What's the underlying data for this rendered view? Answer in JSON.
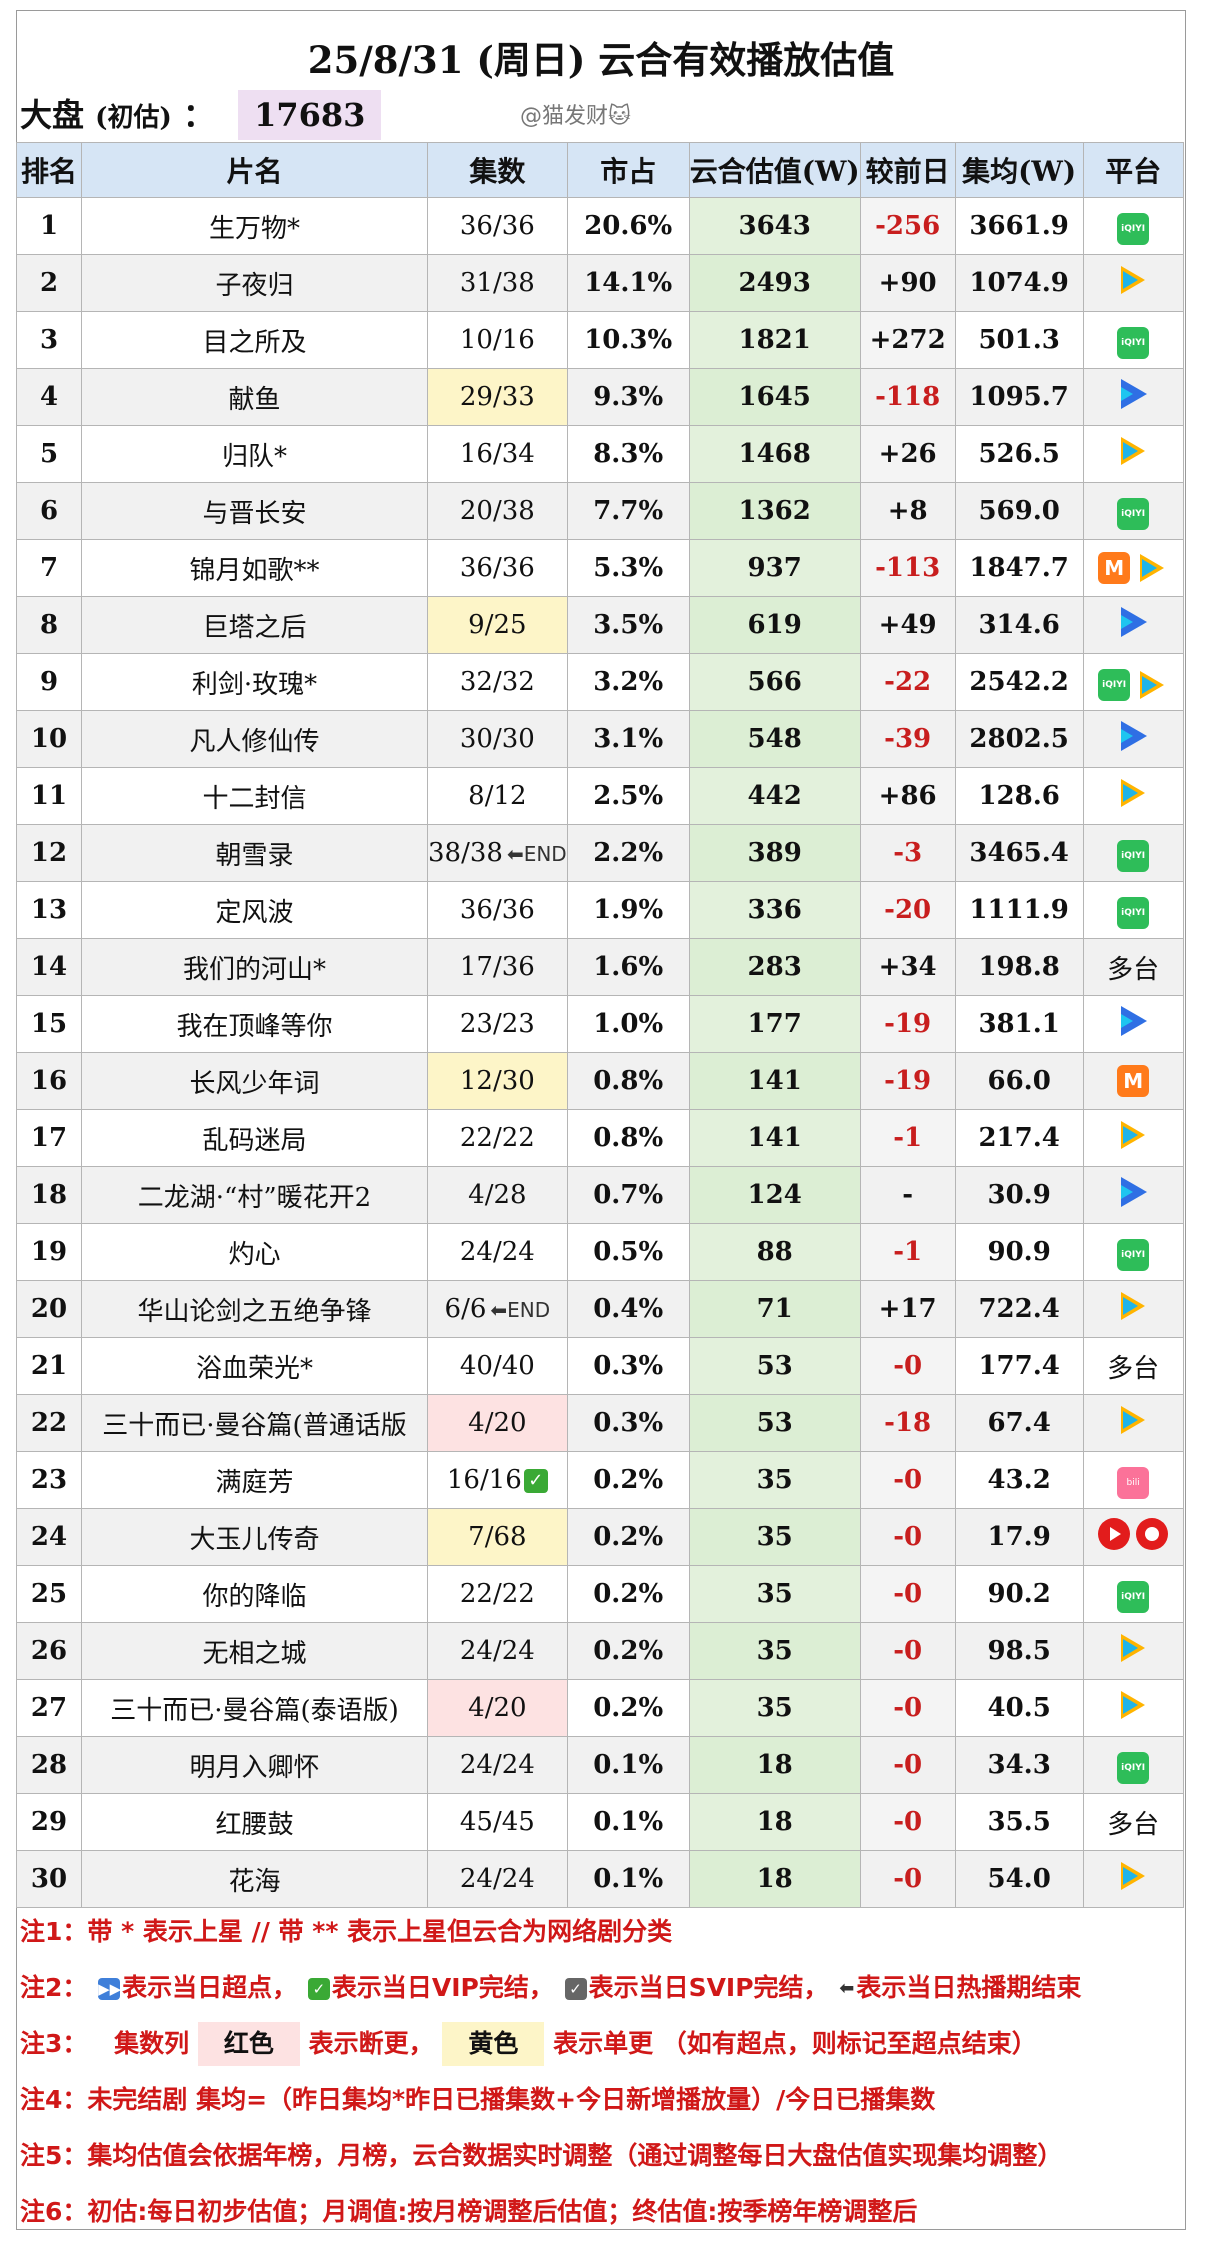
{
  "title": "25/8/31 (周日) 云合有效播放估值",
  "dapan": {
    "label": "大盘",
    "sub": "(初估)",
    "colon": "：",
    "value": "17683"
  },
  "watermark": "@猫发财🐱",
  "headers": [
    "排名",
    "片名",
    "集数",
    "市占",
    "云合估值(W)",
    "较前日",
    "集均(W)",
    "平台"
  ],
  "rows": [
    {
      "rank": "1",
      "name": "生万物*",
      "eps": "36/36",
      "share": "20.6%",
      "est": "3643",
      "chg": "-256",
      "avg": "3661.9",
      "platform": [
        "iqiyi"
      ]
    },
    {
      "rank": "2",
      "name": "子夜归",
      "eps": "31/38",
      "share": "14.1%",
      "est": "2493",
      "chg": "+90",
      "avg": "1074.9",
      "platform": [
        "tencent"
      ]
    },
    {
      "rank": "3",
      "name": "目之所及",
      "eps": "10/16",
      "share": "10.3%",
      "est": "1821",
      "chg": "+272",
      "avg": "501.3",
      "platform": [
        "iqiyi"
      ]
    },
    {
      "rank": "4",
      "name": "献鱼",
      "eps": "29/33",
      "share": "9.3%",
      "est": "1645",
      "chg": "-118",
      "avg": "1095.7",
      "platform": [
        "youku"
      ],
      "eps_mark": "yellow"
    },
    {
      "rank": "5",
      "name": "归队*",
      "eps": "16/34",
      "share": "8.3%",
      "est": "1468",
      "chg": "+26",
      "avg": "526.5",
      "platform": [
        "tencent"
      ]
    },
    {
      "rank": "6",
      "name": "与晋长安",
      "eps": "20/38",
      "share": "7.7%",
      "est": "1362",
      "chg": "+8",
      "avg": "569.0",
      "platform": [
        "iqiyi"
      ]
    },
    {
      "rank": "7",
      "name": "锦月如歌**",
      "eps": "36/36",
      "share": "5.3%",
      "est": "937",
      "chg": "-113",
      "avg": "1847.7",
      "platform": [
        "mango",
        "tencent"
      ]
    },
    {
      "rank": "8",
      "name": "巨塔之后",
      "eps": "9/25",
      "share": "3.5%",
      "est": "619",
      "chg": "+49",
      "avg": "314.6",
      "platform": [
        "youku"
      ],
      "eps_mark": "yellow"
    },
    {
      "rank": "9",
      "name": "利剑·玫瑰*",
      "eps": "32/32",
      "share": "3.2%",
      "est": "566",
      "chg": "-22",
      "avg": "2542.2",
      "platform": [
        "iqiyi",
        "tencent"
      ]
    },
    {
      "rank": "10",
      "name": "凡人修仙传",
      "eps": "30/30",
      "share": "3.1%",
      "est": "548",
      "chg": "-39",
      "avg": "2802.5",
      "platform": [
        "youku"
      ]
    },
    {
      "rank": "11",
      "name": "十二封信",
      "eps": "8/12",
      "share": "2.5%",
      "est": "442",
      "chg": "+86",
      "avg": "128.6",
      "platform": [
        "tencent"
      ]
    },
    {
      "rank": "12",
      "name": "朝雪录",
      "eps": "38/38",
      "share": "2.2%",
      "est": "389",
      "chg": "-3",
      "avg": "3465.4",
      "platform": [
        "iqiyi"
      ],
      "eps_tag": "⬅END"
    },
    {
      "rank": "13",
      "name": "定风波",
      "eps": "36/36",
      "share": "1.9%",
      "est": "336",
      "chg": "-20",
      "avg": "1111.9",
      "platform": [
        "iqiyi"
      ]
    },
    {
      "rank": "14",
      "name": "我们的河山*",
      "eps": "17/36",
      "share": "1.6%",
      "est": "283",
      "chg": "+34",
      "avg": "198.8",
      "platform_text": "多台"
    },
    {
      "rank": "15",
      "name": "我在顶峰等你",
      "eps": "23/23",
      "share": "1.0%",
      "est": "177",
      "chg": "-19",
      "avg": "381.1",
      "platform": [
        "youku"
      ]
    },
    {
      "rank": "16",
      "name": "长风少年词",
      "eps": "12/30",
      "share": "0.8%",
      "est": "141",
      "chg": "-19",
      "avg": "66.0",
      "platform": [
        "mango"
      ],
      "eps_mark": "yellow"
    },
    {
      "rank": "17",
      "name": "乱码迷局",
      "eps": "22/22",
      "share": "0.8%",
      "est": "141",
      "chg": "-1",
      "avg": "217.4",
      "platform": [
        "tencent"
      ]
    },
    {
      "rank": "18",
      "name": "二龙湖·“村”暖花开2",
      "eps": "4/28",
      "share": "0.7%",
      "est": "124",
      "chg": "-",
      "avg": "30.9",
      "platform": [
        "youku"
      ],
      "chg_plain": true
    },
    {
      "rank": "19",
      "name": "灼心",
      "eps": "24/24",
      "share": "0.5%",
      "est": "88",
      "chg": "-1",
      "avg": "90.9",
      "platform": [
        "iqiyi"
      ]
    },
    {
      "rank": "20",
      "name": "华山论剑之五绝争锋",
      "eps": "6/6",
      "share": "0.4%",
      "est": "71",
      "chg": "+17",
      "avg": "722.4",
      "platform": [
        "tencent"
      ],
      "eps_tag": "⬅END"
    },
    {
      "rank": "21",
      "name": "浴血荣光*",
      "eps": "40/40",
      "share": "0.3%",
      "est": "53",
      "chg": "-0",
      "avg": "177.4",
      "platform_text": "多台"
    },
    {
      "rank": "22",
      "name": "三十而已·曼谷篇(普通话版",
      "eps": "4/20",
      "share": "0.3%",
      "est": "53",
      "chg": "-18",
      "avg": "67.4",
      "platform": [
        "tencent"
      ],
      "eps_mark": "red"
    },
    {
      "rank": "23",
      "name": "满庭芳",
      "eps": "16/16",
      "share": "0.2%",
      "est": "35",
      "chg": "-0",
      "avg": "43.2",
      "platform": [
        "bili"
      ],
      "eps_check": "✓"
    },
    {
      "rank": "24",
      "name": "大玉儿传奇",
      "eps": "7/68",
      "share": "0.2%",
      "est": "35",
      "chg": "-0",
      "avg": "17.9",
      "platform": [
        "cctv",
        "cctv2"
      ],
      "eps_mark": "yellow"
    },
    {
      "rank": "25",
      "name": "你的降临",
      "eps": "22/22",
      "share": "0.2%",
      "est": "35",
      "chg": "-0",
      "avg": "90.2",
      "platform": [
        "iqiyi"
      ]
    },
    {
      "rank": "26",
      "name": "无相之城",
      "eps": "24/24",
      "share": "0.2%",
      "est": "35",
      "chg": "-0",
      "avg": "98.5",
      "platform": [
        "tencent"
      ]
    },
    {
      "rank": "27",
      "name": "三十而已·曼谷篇(泰语版)",
      "eps": "4/20",
      "share": "0.2%",
      "est": "35",
      "chg": "-0",
      "avg": "40.5",
      "platform": [
        "tencent"
      ],
      "eps_mark": "red"
    },
    {
      "rank": "28",
      "name": "明月入卿怀",
      "eps": "24/24",
      "share": "0.1%",
      "est": "18",
      "chg": "-0",
      "avg": "34.3",
      "platform": [
        "iqiyi"
      ]
    },
    {
      "rank": "29",
      "name": "红腰鼓",
      "eps": "45/45",
      "share": "0.1%",
      "est": "18",
      "chg": "-0",
      "avg": "35.5",
      "platform_text": "多台"
    },
    {
      "rank": "30",
      "name": "花海",
      "eps": "24/24",
      "share": "0.1%",
      "est": "18",
      "chg": "-0",
      "avg": "54.0",
      "platform": [
        "tencent"
      ]
    }
  ],
  "notes": {
    "n1": "注1：带 * 表示上星 // 带 ** 表示上星但云合为网络剧分类",
    "n2_label": "注2：",
    "n2_a": "表示当日超点，",
    "n2_b": "表示当日VIP完结，",
    "n2_c": "表示当日SVIP完结，",
    "n2_d": "表示当日热播期结束",
    "n3_label": "注3：",
    "n3_a": "集数列",
    "n3_red": "红色",
    "n3_b": "表示断更，",
    "n3_yellow": "黄色",
    "n3_c": "表示单更 （如有超点，则标记至超点结束）",
    "n4": "注4：未完结剧 集均=（昨日集均*昨日已播集数+今日新增播放量）/今日已播集数",
    "n5": "注5：集均估值会依据年榜，月榜，云合数据实时调整（通过调整每日大盘估值实现集均调整）",
    "n6": "注6：初估:每日初步估值；月调值:按月榜调整后估值；终估值:按季榜年榜调整后"
  },
  "colors": {
    "header_bg": "#d6e5f5",
    "est_bg": "#e3f1dc",
    "negative": "#c81e1e",
    "note": "#d01818"
  }
}
